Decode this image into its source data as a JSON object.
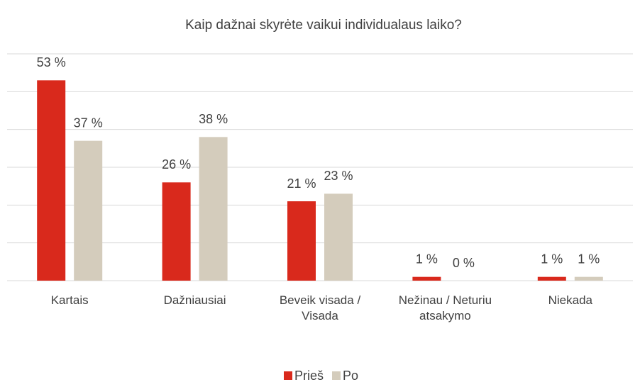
{
  "chart_data": {
    "type": "bar",
    "title": "Kaip dažnai skyrėte vaikui individualaus laiko?",
    "categories": [
      "Kartais",
      "Dažniausiai",
      "Beveik visada / Visada",
      "Nežinau / Neturiu atsakymo",
      "Niekada"
    ],
    "series": [
      {
        "name": "Prieš",
        "color": "#d9291c",
        "values": [
          53,
          26,
          21,
          1,
          1
        ],
        "value_labels": [
          "53 %",
          "26 %",
          "21 %",
          "1 %",
          "1 %"
        ]
      },
      {
        "name": "Po",
        "color": "#d4ccbc",
        "values": [
          37,
          38,
          23,
          0,
          1
        ],
        "value_labels": [
          "37 %",
          "38 %",
          "23 %",
          "0 %",
          "1 %"
        ]
      }
    ],
    "ylim": [
      0,
      60
    ],
    "yticks": [
      0,
      10,
      20,
      30,
      40,
      50,
      60
    ],
    "grid": true,
    "legend": "bottom"
  }
}
